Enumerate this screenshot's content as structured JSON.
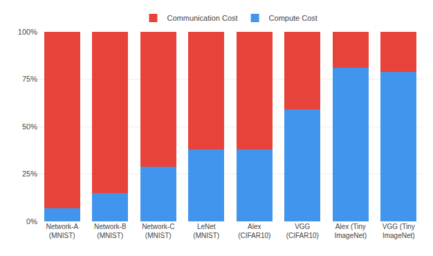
{
  "chart_data": {
    "type": "bar",
    "stacked": true,
    "categories": [
      "Network-A\n(MNIST)",
      "Network-B\n(MNIST)",
      "Network-C\n(MNIST)",
      "LeNet\n(MNIST)",
      "Alex\n(CIFAR10)",
      "VGG\n(CIFAR10)",
      "Alex (Tiny\nImageNet)",
      "VGG (Tiny\nImageNet)"
    ],
    "series": [
      {
        "name": "Compute Cost",
        "color": "#4195EC",
        "values": [
          7,
          15,
          29,
          38,
          38,
          59,
          81,
          79
        ]
      },
      {
        "name": "Communication Cost",
        "color": "#E8433A",
        "values": [
          93,
          85,
          71,
          62,
          62,
          41,
          19,
          21
        ]
      }
    ],
    "ylim": [
      0,
      100
    ],
    "yticks": [
      {
        "value": 0,
        "label": "0%"
      },
      {
        "value": 25,
        "label": "25%"
      },
      {
        "value": 50,
        "label": "50%"
      },
      {
        "value": 75,
        "label": "75%"
      },
      {
        "value": 100,
        "label": "100%"
      }
    ],
    "grid": true,
    "legend": "top"
  }
}
